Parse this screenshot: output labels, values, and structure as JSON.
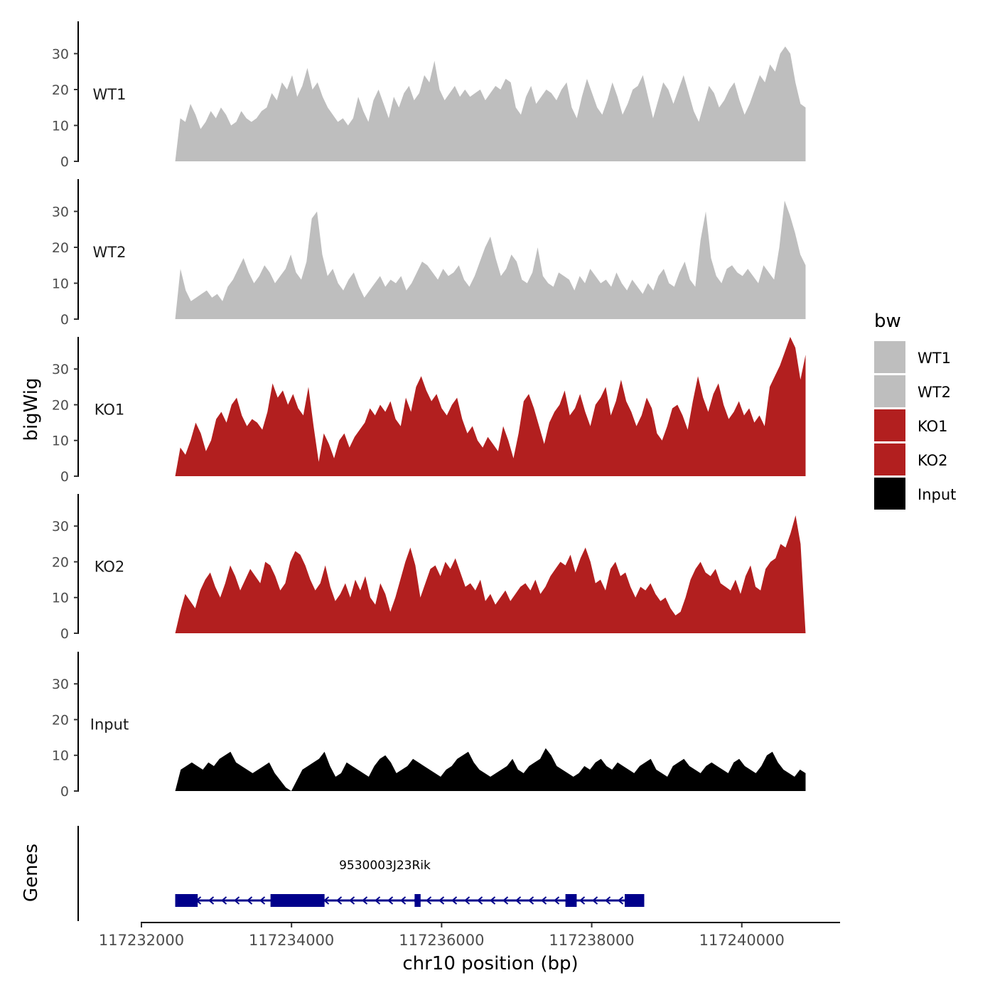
{
  "chart_data": {
    "type": "area",
    "ylabel": "bigWig",
    "genes_label": "Genes",
    "xlabel": "chr10 position (bp)",
    "xlim": [
      117232000,
      117241300
    ],
    "xticks": [
      117232000,
      117234000,
      117236000,
      117238000,
      117240000
    ],
    "xtick_labels": [
      "117232000",
      "117234000",
      "117236000",
      "117238000",
      "117240000"
    ],
    "ylim": [
      0,
      39
    ],
    "yticks": [
      0,
      10,
      20,
      30
    ],
    "ytick_labels": [
      "0",
      "10",
      "20",
      "30"
    ],
    "x_start": 117232450,
    "x_end": 117240850,
    "legend": {
      "title": "bw",
      "position": "right",
      "entries": [
        {
          "label": "WT1",
          "color": "#bebebe"
        },
        {
          "label": "WT2",
          "color": "#bebebe"
        },
        {
          "label": "KO1",
          "color": "#b21f1f"
        },
        {
          "label": "KO2",
          "color": "#b21f1f"
        },
        {
          "label": "Input",
          "color": "#000000"
        }
      ]
    },
    "series": [
      {
        "name": "WT1",
        "color": "#bebebe",
        "values": [
          0,
          12,
          11,
          16,
          13,
          9,
          11,
          14,
          12,
          15,
          13,
          10,
          11,
          14,
          12,
          11,
          12,
          14,
          15,
          19,
          17,
          22,
          20,
          24,
          18,
          21,
          26,
          20,
          22,
          18,
          15,
          13,
          11,
          12,
          10,
          12,
          18,
          14,
          11,
          17,
          20,
          16,
          12,
          18,
          15,
          19,
          21,
          17,
          19,
          24,
          22,
          28,
          20,
          17,
          19,
          21,
          18,
          20,
          18,
          19,
          20,
          17,
          19,
          21,
          20,
          23,
          22,
          15,
          13,
          18,
          21,
          16,
          18,
          20,
          19,
          17,
          20,
          22,
          15,
          12,
          18,
          23,
          19,
          15,
          13,
          17,
          22,
          18,
          13,
          16,
          20,
          21,
          24,
          18,
          12,
          17,
          22,
          20,
          16,
          20,
          24,
          19,
          14,
          11,
          16,
          21,
          19,
          15,
          17,
          20,
          22,
          17,
          13,
          16,
          20,
          24,
          22,
          27,
          25,
          30,
          32,
          30,
          22,
          16,
          15
        ]
      },
      {
        "name": "WT2",
        "color": "#bebebe",
        "values": [
          0,
          14,
          8,
          5,
          6,
          7,
          8,
          6,
          7,
          5,
          9,
          11,
          14,
          17,
          13,
          10,
          12,
          15,
          13,
          10,
          12,
          14,
          18,
          13,
          11,
          16,
          28,
          30,
          18,
          12,
          14,
          10,
          8,
          11,
          13,
          9,
          6,
          8,
          10,
          12,
          9,
          11,
          10,
          12,
          8,
          10,
          13,
          16,
          15,
          13,
          11,
          14,
          12,
          13,
          15,
          11,
          9,
          12,
          16,
          20,
          23,
          17,
          12,
          14,
          18,
          16,
          11,
          10,
          13,
          20,
          12,
          10,
          9,
          13,
          12,
          11,
          8,
          12,
          10,
          14,
          12,
          10,
          11,
          9,
          13,
          10,
          8,
          11,
          9,
          7,
          10,
          8,
          12,
          14,
          10,
          9,
          13,
          16,
          11,
          9,
          22,
          30,
          17,
          12,
          10,
          14,
          15,
          13,
          12,
          14,
          12,
          10,
          15,
          13,
          11,
          20,
          33,
          29,
          24,
          18,
          15
        ]
      },
      {
        "name": "KO1",
        "color": "#b21f1f",
        "values": [
          0,
          8,
          6,
          10,
          15,
          12,
          7,
          10,
          16,
          18,
          15,
          20,
          22,
          17,
          14,
          16,
          15,
          13,
          18,
          26,
          22,
          24,
          20,
          23,
          19,
          17,
          25,
          14,
          4,
          12,
          9,
          5,
          10,
          12,
          8,
          11,
          13,
          15,
          19,
          17,
          20,
          18,
          21,
          16,
          14,
          22,
          18,
          25,
          28,
          24,
          21,
          23,
          19,
          17,
          20,
          22,
          16,
          12,
          14,
          10,
          8,
          11,
          9,
          7,
          14,
          10,
          5,
          12,
          21,
          23,
          19,
          14,
          9,
          15,
          18,
          20,
          24,
          17,
          19,
          23,
          18,
          14,
          20,
          22,
          25,
          17,
          21,
          27,
          21,
          18,
          14,
          17,
          22,
          19,
          12,
          10,
          14,
          19,
          20,
          17,
          13,
          21,
          28,
          22,
          18,
          23,
          26,
          20,
          16,
          18,
          21,
          17,
          19,
          15,
          17,
          14,
          25,
          28,
          31,
          35,
          39,
          36,
          27,
          34
        ]
      },
      {
        "name": "KO2",
        "color": "#b21f1f",
        "values": [
          0,
          6,
          11,
          9,
          7,
          12,
          15,
          17,
          13,
          10,
          14,
          19,
          16,
          12,
          15,
          18,
          16,
          14,
          20,
          19,
          16,
          12,
          14,
          20,
          23,
          22,
          19,
          15,
          12,
          14,
          19,
          13,
          9,
          11,
          14,
          10,
          15,
          12,
          16,
          10,
          8,
          14,
          11,
          6,
          10,
          15,
          20,
          24,
          19,
          10,
          14,
          18,
          19,
          16,
          20,
          18,
          21,
          17,
          13,
          14,
          12,
          15,
          9,
          11,
          8,
          10,
          12,
          9,
          11,
          13,
          14,
          12,
          15,
          11,
          13,
          16,
          18,
          20,
          19,
          22,
          17,
          21,
          24,
          20,
          14,
          15,
          12,
          18,
          20,
          16,
          17,
          13,
          10,
          13,
          12,
          14,
          11,
          9,
          10,
          7,
          5,
          6,
          10,
          15,
          18,
          20,
          17,
          16,
          18,
          14,
          13,
          12,
          15,
          11,
          16,
          19,
          13,
          12,
          18,
          20,
          21,
          25,
          24,
          28,
          33,
          25,
          0
        ]
      },
      {
        "name": "Input",
        "color": "#000000",
        "values": [
          0,
          6,
          7,
          8,
          7,
          6,
          8,
          7,
          9,
          10,
          11,
          8,
          7,
          6,
          5,
          6,
          7,
          8,
          5,
          3,
          1,
          0,
          3,
          6,
          7,
          8,
          9,
          11,
          7,
          4,
          5,
          8,
          7,
          6,
          5,
          4,
          7,
          9,
          10,
          8,
          5,
          6,
          7,
          9,
          8,
          7,
          6,
          5,
          4,
          6,
          7,
          9,
          10,
          11,
          8,
          6,
          5,
          4,
          5,
          6,
          7,
          9,
          6,
          5,
          7,
          8,
          9,
          12,
          10,
          7,
          6,
          5,
          4,
          5,
          7,
          6,
          8,
          9,
          7,
          6,
          8,
          7,
          6,
          5,
          7,
          8,
          9,
          6,
          5,
          4,
          7,
          8,
          9,
          7,
          6,
          5,
          7,
          8,
          7,
          6,
          5,
          8,
          9,
          7,
          6,
          5,
          7,
          10,
          11,
          8,
          6,
          5,
          4,
          6,
          5
        ]
      }
    ],
    "genes": [
      {
        "name": "9530003J23Rik",
        "strand": "-",
        "start": 117232450,
        "end": 117238700,
        "color": "#00008b",
        "exons": [
          [
            117232450,
            117232750
          ],
          [
            117233720,
            117234440
          ],
          [
            117235640,
            117235720
          ],
          [
            117237650,
            117237800
          ],
          [
            117238440,
            117238700
          ]
        ]
      }
    ]
  }
}
